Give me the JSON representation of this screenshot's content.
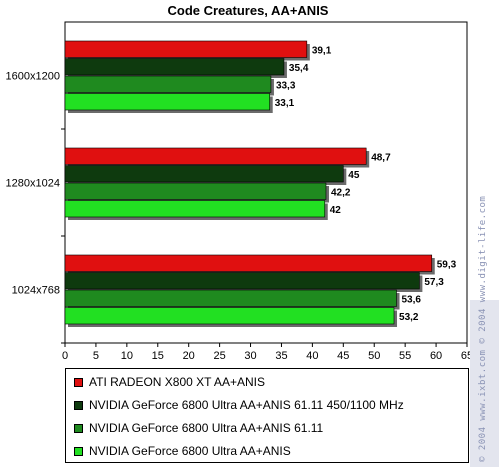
{
  "watermark": "© 2004 www.ixbt.com  © 2004 www.digit-life.com",
  "chart_data": {
    "type": "bar",
    "orientation": "horizontal",
    "title": "Code Creatures, AA+ANIS",
    "xlabel": "",
    "ylabel": "",
    "xlim": [
      0,
      65
    ],
    "xticks": [
      0,
      5,
      10,
      15,
      20,
      25,
      30,
      35,
      40,
      45,
      50,
      55,
      60,
      65
    ],
    "grid": false,
    "legend_position": "bottom",
    "categories": [
      "1600x1200",
      "1280x1024",
      "1024x768"
    ],
    "series": [
      {
        "name": "ATI RADEON X800 XT AA+ANIS",
        "color": "#e01010",
        "values": [
          39.1,
          48.7,
          59.3
        ],
        "labels": [
          "39,1",
          "48,7",
          "59,3"
        ]
      },
      {
        "name": "NVIDIA GeForce 6800 Ultra AA+ANIS 61.11 450/1100 MHz",
        "color": "#0e3a0e",
        "values": [
          35.4,
          45,
          57.3
        ],
        "labels": [
          "35,4",
          "45",
          "57,3"
        ]
      },
      {
        "name": "NVIDIA GeForce 6800 Ultra AA+ANIS 61.11",
        "color": "#1f8a1f",
        "values": [
          33.3,
          42.2,
          53.6
        ],
        "labels": [
          "33,3",
          "42,2",
          "53,6"
        ]
      },
      {
        "name": "NVIDIA GeForce 6800 Ultra AA+ANIS",
        "color": "#22e022",
        "values": [
          33.1,
          42,
          53.2
        ],
        "labels": [
          "33,1",
          "42",
          "53,2"
        ]
      }
    ]
  }
}
